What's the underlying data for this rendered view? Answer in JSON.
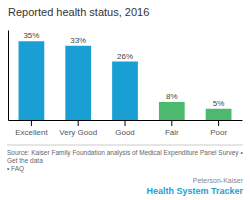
{
  "chart_data": {
    "type": "bar",
    "title": "Reported health status, 2016",
    "categories": [
      "Excellent",
      "Very Good",
      "Good",
      "Fair",
      "Poor"
    ],
    "values": [
      35,
      33,
      26,
      8,
      5
    ],
    "value_labels": [
      "35%",
      "33%",
      "26%",
      "8%",
      "5%"
    ],
    "colors": [
      "#1a9fd4",
      "#1a9fd4",
      "#1a9fd4",
      "#4db96e",
      "#4db96e"
    ],
    "ylim": [
      0,
      40
    ],
    "data_labels": true,
    "tick_labels": "x",
    "grid": false,
    "annotations": [
      "Source: Kaiser Family Foundation analysis of Medical Expenditure Panel Survey • Get the data",
      "• FAQ",
      "Peterson-Kaiser",
      "Health System Tracker"
    ]
  }
}
